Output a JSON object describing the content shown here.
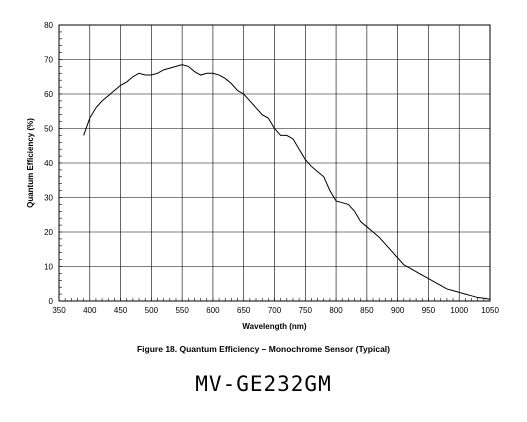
{
  "chart_data": {
    "type": "line",
    "xlabel": "Wavelength (nm)",
    "ylabel": "Quantum Efficiency (%)",
    "xlim": [
      350,
      1050
    ],
    "ylim": [
      0,
      80
    ],
    "xticks": [
      350,
      400,
      450,
      500,
      550,
      600,
      650,
      700,
      750,
      800,
      850,
      900,
      950,
      1000,
      1050
    ],
    "yticks": [
      0,
      10,
      20,
      30,
      40,
      50,
      60,
      70,
      80
    ],
    "grid": true,
    "series": [
      {
        "x": [
          390,
          400,
          410,
          420,
          430,
          440,
          450,
          460,
          470,
          480,
          490,
          500,
          510,
          520,
          530,
          540,
          550,
          560,
          570,
          580,
          590,
          600,
          610,
          620,
          630,
          640,
          650,
          660,
          670,
          680,
          690,
          700,
          710,
          720,
          730,
          740,
          750,
          760,
          770,
          780,
          790,
          800,
          810,
          820,
          830,
          840,
          850,
          860,
          870,
          880,
          890,
          900,
          910,
          920,
          930,
          940,
          950,
          960,
          970,
          980,
          990,
          1000,
          1010,
          1020,
          1030,
          1040,
          1050
        ],
        "y": [
          48,
          53,
          56,
          58,
          59.5,
          61,
          62.5,
          63.5,
          65,
          66,
          65.5,
          65.5,
          66,
          67,
          67.5,
          68,
          68.5,
          68,
          66.5,
          65.5,
          66,
          66,
          65.5,
          64.5,
          63,
          61,
          60,
          58,
          56,
          54,
          53,
          50,
          48,
          48,
          47,
          44,
          41,
          39,
          37.5,
          36,
          32,
          29,
          28.5,
          28,
          26,
          23,
          21.5,
          20,
          18.5,
          16.5,
          14.5,
          12.5,
          10.5,
          9.5,
          8.5,
          7.5,
          6.5,
          5.5,
          4.5,
          3.5,
          3,
          2.5,
          2,
          1.5,
          1,
          0.8,
          0.5
        ]
      }
    ]
  },
  "caption": "Figure 18. Quantum Efficiency – Monochrome Sensor (Typical)",
  "model": "MV-GE232GM"
}
